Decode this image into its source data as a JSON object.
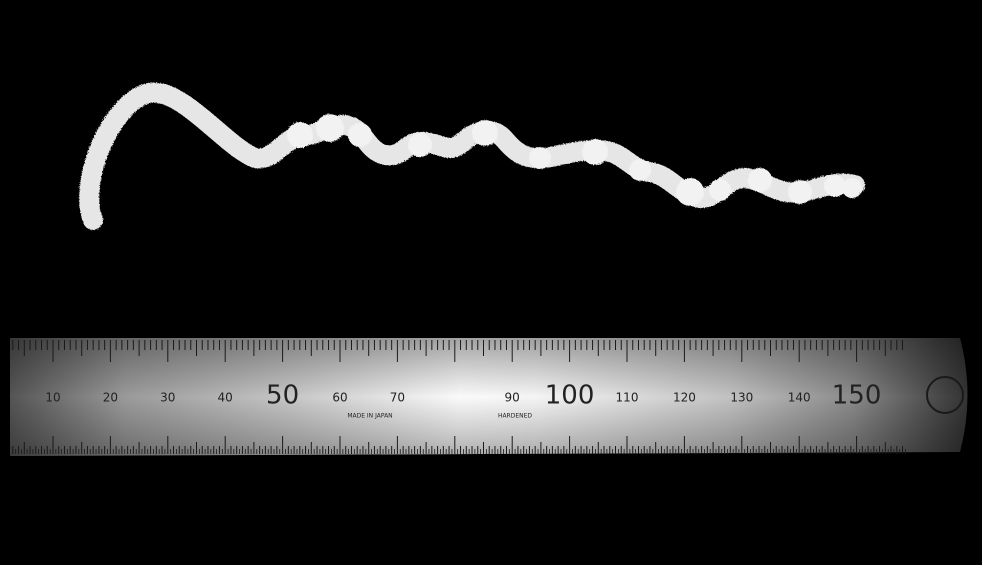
{
  "ruler": {
    "numbers": [
      10,
      20,
      30,
      40,
      50,
      60,
      70,
      90,
      100,
      110,
      120,
      130,
      140,
      150
    ],
    "maker": "MADE IN JAPAN",
    "note": "HARDENED"
  }
}
